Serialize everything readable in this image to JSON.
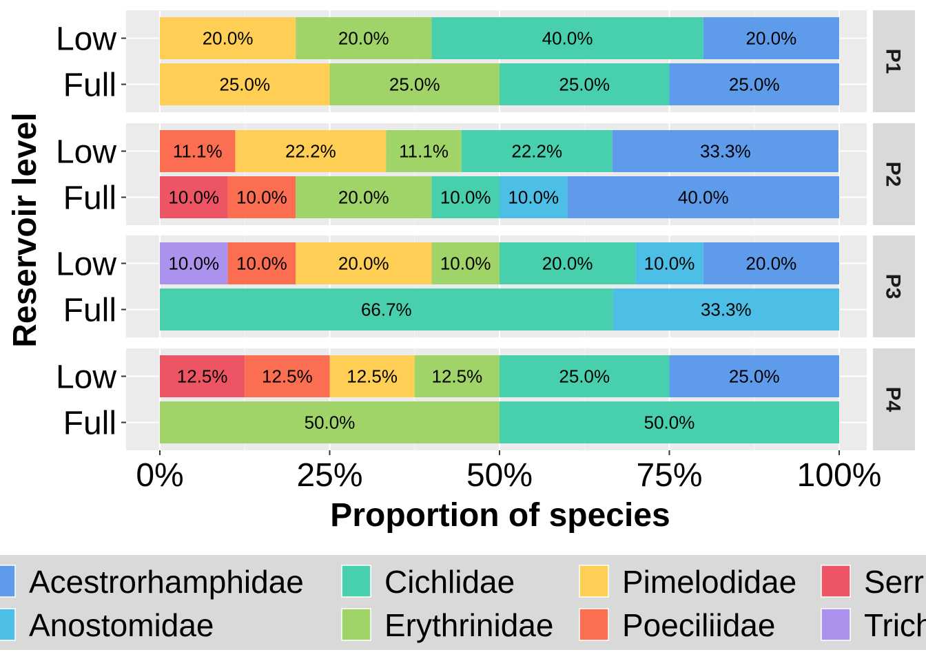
{
  "chart_data": {
    "type": "bar",
    "orientation": "horizontal",
    "stacked": true,
    "normalized": true,
    "xlabel": "Proportion of species",
    "ylabel": "Reservoir level",
    "xlim": [
      0,
      1
    ],
    "x_ticks": [
      0,
      0.25,
      0.5,
      0.75,
      1
    ],
    "x_tick_labels": [
      "0%",
      "25%",
      "50%",
      "75%",
      "100%"
    ],
    "grid": true,
    "legend_position": "bottom",
    "legend": [
      {
        "name": "Acestrorhamphidae",
        "color": "#5E9BEB"
      },
      {
        "name": "Anostomidae",
        "color": "#4DBFE6"
      },
      {
        "name": "Cichlidae",
        "color": "#48CFAE"
      },
      {
        "name": "Erythrinidae",
        "color": "#A0D468"
      },
      {
        "name": "Pimelodidae",
        "color": "#FFCE54"
      },
      {
        "name": "Poeciliidae",
        "color": "#FC6E51"
      },
      {
        "name": "Serr",
        "color": "#ED5565"
      },
      {
        "name": "Trich",
        "color": "#AC92EC"
      }
    ],
    "facets": [
      {
        "label": "P1",
        "bars": [
          {
            "level": "Low",
            "segments": [
              {
                "family": "Pimelodidae",
                "value": 0.2,
                "label": "20.0%"
              },
              {
                "family": "Erythrinidae",
                "value": 0.2,
                "label": "20.0%"
              },
              {
                "family": "Cichlidae",
                "value": 0.4,
                "label": "40.0%"
              },
              {
                "family": "Acestrorhamphidae",
                "value": 0.2,
                "label": "20.0%"
              }
            ]
          },
          {
            "level": "Full",
            "segments": [
              {
                "family": "Pimelodidae",
                "value": 0.25,
                "label": "25.0%"
              },
              {
                "family": "Erythrinidae",
                "value": 0.25,
                "label": "25.0%"
              },
              {
                "family": "Cichlidae",
                "value": 0.25,
                "label": "25.0%"
              },
              {
                "family": "Acestrorhamphidae",
                "value": 0.25,
                "label": "25.0%"
              }
            ]
          }
        ]
      },
      {
        "label": "P2",
        "bars": [
          {
            "level": "Low",
            "segments": [
              {
                "family": "Poeciliidae",
                "value": 0.111,
                "label": "11.1%"
              },
              {
                "family": "Pimelodidae",
                "value": 0.222,
                "label": "22.2%"
              },
              {
                "family": "Erythrinidae",
                "value": 0.111,
                "label": "11.1%"
              },
              {
                "family": "Cichlidae",
                "value": 0.222,
                "label": "22.2%"
              },
              {
                "family": "Acestrorhamphidae",
                "value": 0.333,
                "label": "33.3%"
              }
            ]
          },
          {
            "level": "Full",
            "segments": [
              {
                "family": "Serr",
                "value": 0.1,
                "label": "10.0%"
              },
              {
                "family": "Poeciliidae",
                "value": 0.1,
                "label": "10.0%"
              },
              {
                "family": "Erythrinidae",
                "value": 0.2,
                "label": "20.0%"
              },
              {
                "family": "Cichlidae",
                "value": 0.1,
                "label": "10.0%"
              },
              {
                "family": "Anostomidae",
                "value": 0.1,
                "label": "10.0%"
              },
              {
                "family": "Acestrorhamphidae",
                "value": 0.4,
                "label": "40.0%"
              }
            ]
          }
        ]
      },
      {
        "label": "P3",
        "bars": [
          {
            "level": "Low",
            "segments": [
              {
                "family": "Trich",
                "value": 0.1,
                "label": "10.0%"
              },
              {
                "family": "Poeciliidae",
                "value": 0.1,
                "label": "10.0%"
              },
              {
                "family": "Pimelodidae",
                "value": 0.2,
                "label": "20.0%"
              },
              {
                "family": "Erythrinidae",
                "value": 0.1,
                "label": "10.0%"
              },
              {
                "family": "Cichlidae",
                "value": 0.2,
                "label": "20.0%"
              },
              {
                "family": "Anostomidae",
                "value": 0.1,
                "label": "10.0%"
              },
              {
                "family": "Acestrorhamphidae",
                "value": 0.2,
                "label": "20.0%"
              }
            ]
          },
          {
            "level": "Full",
            "segments": [
              {
                "family": "Cichlidae",
                "value": 0.667,
                "label": "66.7%"
              },
              {
                "family": "Anostomidae",
                "value": 0.333,
                "label": "33.3%"
              }
            ]
          }
        ]
      },
      {
        "label": "P4",
        "bars": [
          {
            "level": "Low",
            "segments": [
              {
                "family": "Serr",
                "value": 0.125,
                "label": "12.5%"
              },
              {
                "family": "Poeciliidae",
                "value": 0.125,
                "label": "12.5%"
              },
              {
                "family": "Pimelodidae",
                "value": 0.125,
                "label": "12.5%"
              },
              {
                "family": "Erythrinidae",
                "value": 0.125,
                "label": "12.5%"
              },
              {
                "family": "Cichlidae",
                "value": 0.25,
                "label": "25.0%"
              },
              {
                "family": "Acestrorhamphidae",
                "value": 0.25,
                "label": "25.0%"
              }
            ]
          },
          {
            "level": "Full",
            "segments": [
              {
                "family": "Erythrinidae",
                "value": 0.5,
                "label": "50.0%"
              },
              {
                "family": "Cichlidae",
                "value": 0.5,
                "label": "50.0%"
              }
            ]
          }
        ]
      }
    ]
  }
}
